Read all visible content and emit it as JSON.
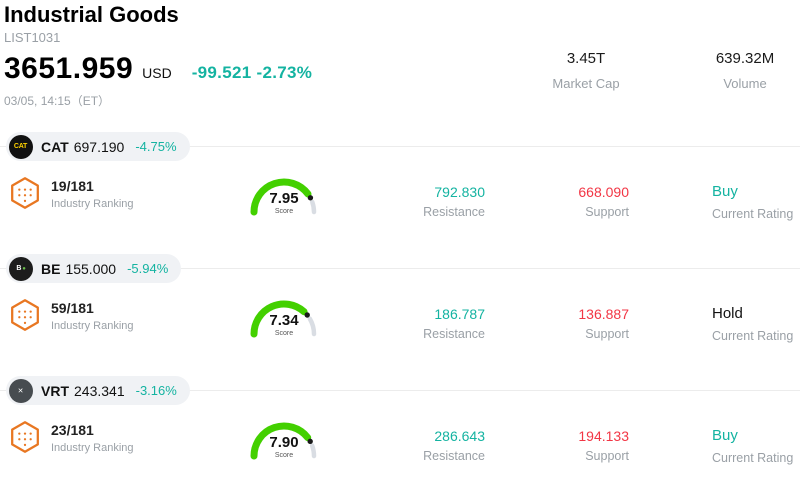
{
  "header": {
    "title": "Industrial Goods",
    "subtitle": "LIST1031",
    "price": "3651.959",
    "currency": "USD",
    "change": "-99.521 -2.73%",
    "datetime": "03/05, 14:15（ET）",
    "market_cap": {
      "value": "3.45T",
      "label": "Market Cap"
    },
    "volume": {
      "value": "639.32M",
      "label": "Volume"
    }
  },
  "labels": {
    "rank": "Industry Ranking",
    "score": "Score",
    "resistance": "Resistance",
    "support": "Support",
    "rating": "Current Rating"
  },
  "colors": {
    "teal": "#14b3a1",
    "red": "#f23645",
    "gauge_green": "#43d000",
    "gauge_rest": "#d9dde3",
    "dot": "#1a1a1a",
    "hexagon_orange": "#e87722"
  },
  "rows": [
    {
      "ticker": "CAT",
      "logo": {
        "text": "CAT",
        "bg": "#111111",
        "fg": "#ffd200",
        "accent": ""
      },
      "price": "697.190",
      "change": "-4.75%",
      "rank": "19/181",
      "score": "7.95",
      "resistance": "792.830",
      "support": "668.090",
      "rating": "Buy",
      "rating_color": "#14b3a1"
    },
    {
      "ticker": "BE",
      "logo": {
        "text": "B",
        "bg": "#1c1c1c",
        "fg": "#ffffff",
        "accent": "●"
      },
      "price": "155.000",
      "change": "-5.94%",
      "rank": "59/181",
      "score": "7.34",
      "resistance": "186.787",
      "support": "136.887",
      "rating": "Hold",
      "rating_color": "#111111"
    },
    {
      "ticker": "VRT",
      "logo": {
        "text": "✕",
        "bg": "#474c50",
        "fg": "#ffffff",
        "accent": ""
      },
      "price": "243.341",
      "change": "-3.16%",
      "rank": "23/181",
      "score": "7.90",
      "resistance": "286.643",
      "support": "194.133",
      "rating": "Buy",
      "rating_color": "#14b3a1"
    }
  ]
}
